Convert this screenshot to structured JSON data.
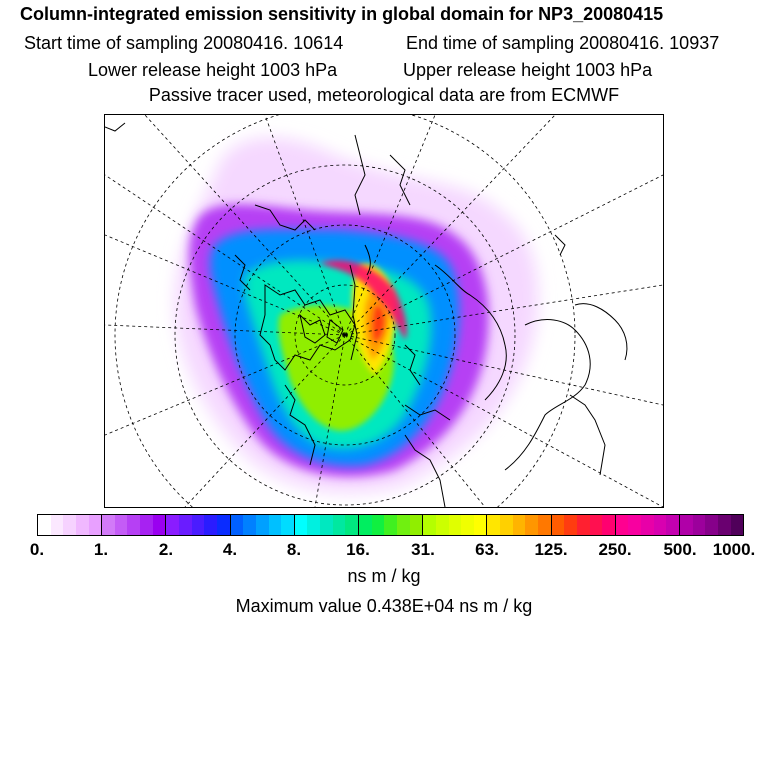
{
  "header": {
    "title": "Column-integrated emission sensitivity in global domain for NP3_20080415",
    "start_time": "Start time of sampling 20080416. 10614",
    "end_time": "End time of sampling 20080416. 10937",
    "lower_release": "Lower release height 1003 hPa",
    "upper_release": "Upper release height 1003 hPa",
    "tracer_note": "Passive tracer used, meteorological data are from ECMWF"
  },
  "map": {
    "projection": "north-polar stereographic",
    "grid": "lat/lon dashed graticule"
  },
  "colorbar": {
    "ticks": [
      "0.",
      "1.",
      "2.",
      "4.",
      "8.",
      "16.",
      "31.",
      "63.",
      "125.",
      "250.",
      "500.",
      "1000."
    ],
    "units": "ns m / kg",
    "colors": [
      "#ffffff",
      "#fbe8ff",
      "#f6d2ff",
      "#f0b8ff",
      "#e8a0ff",
      "#d27af8",
      "#c45cf6",
      "#b640f4",
      "#a722f2",
      "#9a00f0",
      "#8a1cff",
      "#6a1cff",
      "#4a1cff",
      "#2a1cff",
      "#0a2cff",
      "#0060ff",
      "#0080ff",
      "#00a0ff",
      "#00c0ff",
      "#00dcff",
      "#00ffff",
      "#00f0e0",
      "#00e8c0",
      "#00e8a0",
      "#00e880",
      "#00ee60",
      "#10f040",
      "#40f020",
      "#70f010",
      "#90ee00",
      "#b4ff00",
      "#ccff00",
      "#e0ff00",
      "#f0ff00",
      "#ffff00",
      "#ffe600",
      "#ffd000",
      "#ffb400",
      "#ff9600",
      "#ff7800",
      "#ff5c00",
      "#ff3c10",
      "#ff2030",
      "#ff1050",
      "#ff0070",
      "#ff0090",
      "#f800a0",
      "#e800a8",
      "#d800b0",
      "#c400b0",
      "#b000a8",
      "#9c009c",
      "#86008a",
      "#6a0070",
      "#50005a"
    ]
  },
  "maximum": "Maximum value  0.438E+04 ns m / kg"
}
